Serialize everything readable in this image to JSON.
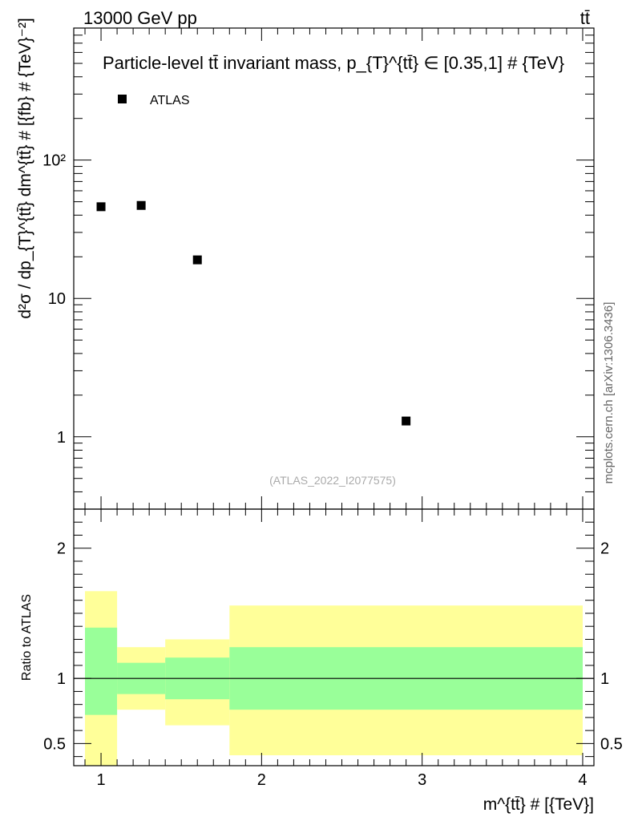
{
  "header": {
    "left": "13000 GeV pp",
    "right": "tt̄"
  },
  "watermark": "mcplots.cern.ch [arXiv:1306.3436]",
  "analysis_id": "(ATLAS_2022_I2077575)",
  "colors": {
    "band_inner": "#99ff99",
    "band_outer": "#ffff99",
    "markers": "#000000"
  },
  "chart_data": [
    {
      "type": "scatter",
      "title": "Particle-level tt̄ invariant mass, p_{T}^{tt̄} ∈ [0.35,1] # {TeV}",
      "ylabel": "d²σ / dp_{T}^{tt̄} dm^{tt̄} # [{fb} # {TeV}⁻²]",
      "yscale": "log",
      "ylim": [
        0.3,
        900
      ],
      "xlim": [
        0.83,
        4.07
      ],
      "ytick_labels": [
        "1",
        "10",
        "10²"
      ],
      "legend": {
        "position": "top-left",
        "entries": [
          "ATLAS"
        ]
      },
      "series": [
        {
          "name": "ATLAS",
          "x": [
            1.0,
            1.25,
            1.6,
            2.9
          ],
          "y": [
            46,
            47,
            19,
            1.3
          ]
        }
      ]
    },
    {
      "type": "area",
      "xlabel": "m^{tt̄} # [{TeV}]",
      "ylabel": "Ratio to ATLAS",
      "ylim": [
        0.33,
        2.3
      ],
      "xlim": [
        0.83,
        4.07
      ],
      "xtick_labels": [
        "1",
        "2",
        "3",
        "4"
      ],
      "ytick_labels": [
        "0.5",
        "1",
        "2"
      ],
      "reference_line": 1,
      "bins": [
        {
          "x_low": 0.9,
          "x_high": 1.1,
          "inner_low": 0.72,
          "inner_high": 1.39,
          "outer_low": 0.33,
          "outer_high": 1.67
        },
        {
          "x_low": 1.1,
          "x_high": 1.4,
          "inner_low": 0.88,
          "inner_high": 1.12,
          "outer_low": 0.76,
          "outer_high": 1.24
        },
        {
          "x_low": 1.4,
          "x_high": 1.8,
          "inner_low": 0.84,
          "inner_high": 1.16,
          "outer_low": 0.64,
          "outer_high": 1.3
        },
        {
          "x_low": 1.8,
          "x_high": 4.0,
          "inner_low": 0.76,
          "inner_high": 1.24,
          "outer_low": 0.41,
          "outer_high": 1.56
        }
      ]
    }
  ]
}
